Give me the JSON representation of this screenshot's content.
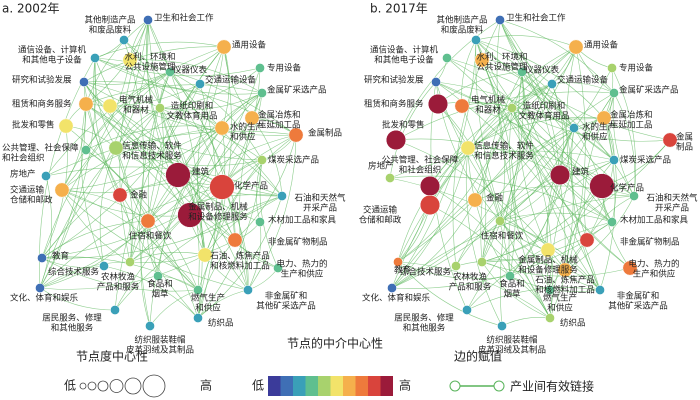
{
  "panels": [
    {
      "title": "a. 2002年",
      "nodes": [
        {
          "label": [
            "其他制造产品",
            "和废品废料"
          ],
          "degree": 1,
          "betweenness": 3
        },
        {
          "label": [
            "卫生和社会工作"
          ],
          "degree": 1,
          "betweenness": 2
        },
        {
          "label": [
            "通信设备、计算机",
            "和其他电子设备"
          ],
          "degree": 1,
          "betweenness": 3
        },
        {
          "label": [
            "水利、环境和",
            "公共设施管理"
          ],
          "degree": 2,
          "betweenness": 6
        },
        {
          "label": [
            "仪器仪表"
          ],
          "degree": 1,
          "betweenness": 4
        },
        {
          "label": [
            "通用设备"
          ],
          "degree": 2,
          "betweenness": 7
        },
        {
          "label": [
            "专用设备"
          ],
          "degree": 1,
          "betweenness": 4
        },
        {
          "label": [
            "交通运输设备"
          ],
          "degree": 1,
          "betweenness": 3
        },
        {
          "label": [
            "研究和试验发展"
          ],
          "degree": 1,
          "betweenness": 2
        },
        {
          "label": [
            "租赁和商务服务"
          ],
          "degree": 2,
          "betweenness": 7
        },
        {
          "label": [
            "电气机械",
            "和器材"
          ],
          "degree": 2,
          "betweenness": 6
        },
        {
          "label": [
            "造纸印刷和",
            "文教体育用品"
          ],
          "degree": 1,
          "betweenness": 5
        },
        {
          "label": [
            "金属矿采选产品"
          ],
          "degree": 1,
          "betweenness": 4
        },
        {
          "label": [
            "批发和零售"
          ],
          "degree": 2,
          "betweenness": 6
        },
        {
          "label": [
            "金属冶炼和",
            "压延加工品"
          ],
          "degree": 2,
          "betweenness": 7
        },
        {
          "label": [
            "水的生产",
            "和供应"
          ],
          "degree": 2,
          "betweenness": 7
        },
        {
          "label": [
            "金属制品"
          ],
          "degree": 2,
          "betweenness": 8
        },
        {
          "label": [
            "公共管理、社会保障",
            "和社会组织"
          ],
          "degree": 1,
          "betweenness": 4
        },
        {
          "label": [
            "信息传输、软件",
            "和信息技术服务"
          ],
          "degree": 2,
          "betweenness": 5
        },
        {
          "label": [
            "煤炭采选产品"
          ],
          "degree": 1,
          "betweenness": 5
        },
        {
          "label": [
            "房地产"
          ],
          "degree": 1,
          "betweenness": 3
        },
        {
          "label": [
            "建筑"
          ],
          "degree": 4,
          "betweenness": 10
        },
        {
          "label": [
            "化学产品"
          ],
          "degree": 4,
          "betweenness": 9
        },
        {
          "label": [
            "交通运输",
            "仓储和邮政"
          ],
          "degree": 2,
          "betweenness": 7
        },
        {
          "label": [
            "金融"
          ],
          "degree": 2,
          "betweenness": 9
        },
        {
          "label": [
            "石油和天然气",
            "开采产品"
          ],
          "degree": 1,
          "betweenness": 3
        },
        {
          "label": [
            "住宿和餐饮"
          ],
          "degree": 2,
          "betweenness": 8
        },
        {
          "label": [
            "金属制品、机械",
            "和设备修理服务"
          ],
          "degree": 4,
          "betweenness": 10
        },
        {
          "label": [
            "木材加工品和家具"
          ],
          "degree": 1,
          "betweenness": 4
        },
        {
          "label": [
            "教育"
          ],
          "degree": 1,
          "betweenness": 2
        },
        {
          "label": [
            "非金属矿物制品"
          ],
          "degree": 2,
          "betweenness": 8
        },
        {
          "label": [
            "综合技术服务"
          ],
          "degree": 1,
          "betweenness": 3
        },
        {
          "label": [
            "石油、炼焦产品",
            "和核燃料加工品"
          ],
          "degree": 2,
          "betweenness": 6
        },
        {
          "label": [
            "农林牧渔",
            "产品和服务"
          ],
          "degree": 1,
          "betweenness": 5
        },
        {
          "label": [
            "电力、热力的",
            "生产和供应"
          ],
          "degree": 1,
          "betweenness": 4
        },
        {
          "label": [
            "食品和",
            "烟草"
          ],
          "degree": 1,
          "betweenness": 4
        },
        {
          "label": [
            "文化、体育和娱乐"
          ],
          "degree": 1,
          "betweenness": 2
        },
        {
          "label": [
            "燃气生产",
            "和供应"
          ],
          "degree": 1,
          "betweenness": 4
        },
        {
          "label": [
            "居民服务、修理",
            "和其他服务"
          ],
          "degree": 1,
          "betweenness": 3
        },
        {
          "label": [
            "非金属矿和",
            "其他矿采选产品"
          ],
          "degree": 1,
          "betweenness": 3
        },
        {
          "label": [
            "纺织品"
          ],
          "degree": 1,
          "betweenness": 3
        },
        {
          "label": [
            "纺织服装鞋帽",
            "皮革羽绒及其制品"
          ],
          "degree": 1,
          "betweenness": 3
        }
      ]
    },
    {
      "title": "b. 2017年",
      "nodes": [
        {
          "label": [
            "其他制造产品",
            "和废品废料"
          ],
          "degree": 1,
          "betweenness": 3
        },
        {
          "label": [
            "卫生和社会工作"
          ],
          "degree": 1,
          "betweenness": 2
        },
        {
          "label": [
            "通信设备、计算机",
            "和其他电子设备"
          ],
          "degree": 1,
          "betweenness": 4
        },
        {
          "label": [
            "水利、环境和",
            "公共设施管理"
          ],
          "degree": 2,
          "betweenness": 7
        },
        {
          "label": [
            "仪器仪表"
          ],
          "degree": 1,
          "betweenness": 4
        },
        {
          "label": [
            "通用设备"
          ],
          "degree": 2,
          "betweenness": 7
        },
        {
          "label": [
            "专用设备"
          ],
          "degree": 1,
          "betweenness": 5
        },
        {
          "label": [
            "交通运输设备"
          ],
          "degree": 1,
          "betweenness": 3
        },
        {
          "label": [
            "研究和试验发展"
          ],
          "degree": 1,
          "betweenness": 2
        },
        {
          "label": [
            "租赁和商务服务"
          ],
          "degree": 3,
          "betweenness": 10
        },
        {
          "label": [
            "电气机械",
            "和器材"
          ],
          "degree": 2,
          "betweenness": 8
        },
        {
          "label": [
            "造纸印刷和",
            "文教体育用品"
          ],
          "degree": 1,
          "betweenness": 5
        },
        {
          "label": [
            "金属矿采选产品"
          ],
          "degree": 1,
          "betweenness": 4
        },
        {
          "label": [
            "批发和零售"
          ],
          "degree": 3,
          "betweenness": 10
        },
        {
          "label": [
            "金属冶炼和",
            "压延加工品"
          ],
          "degree": 2,
          "betweenness": 7
        },
        {
          "label": [
            "水的生产",
            "和供应"
          ],
          "degree": 1,
          "betweenness": 3
        },
        {
          "label": [
            "金属",
            "制品"
          ],
          "degree": 2,
          "betweenness": 9
        },
        {
          "label": [
            "公共管理、社会保障",
            "和社会组织"
          ],
          "degree": 3,
          "betweenness": 10
        },
        {
          "label": [
            "信息传输、软件",
            "和信息技术服务"
          ],
          "degree": 2,
          "betweenness": 6
        },
        {
          "label": [
            "煤炭采选产品"
          ],
          "degree": 1,
          "betweenness": 3
        },
        {
          "label": [
            "房地产"
          ],
          "degree": 1,
          "betweenness": 5
        },
        {
          "label": [
            "建筑"
          ],
          "degree": 3,
          "betweenness": 10
        },
        {
          "label": [
            "化学产品"
          ],
          "degree": 4,
          "betweenness": 10
        },
        {
          "label": [
            "交通运输",
            "仓储和邮政"
          ],
          "degree": 3,
          "betweenness": 9
        },
        {
          "label": [
            "金融"
          ],
          "degree": 2,
          "betweenness": 7
        },
        {
          "label": [
            "石油和天然气",
            "开采产品"
          ],
          "degree": 1,
          "betweenness": 4
        },
        {
          "label": [
            "住宿和餐饮"
          ],
          "degree": 1,
          "betweenness": 5
        },
        {
          "label": [
            "金属制品、机械",
            "和设备修理服务"
          ],
          "degree": 2,
          "betweenness": 6
        },
        {
          "label": [
            "木材加工品和家具"
          ],
          "degree": 1,
          "betweenness": 4
        },
        {
          "label": [
            "教育"
          ],
          "degree": 1,
          "betweenness": 8
        },
        {
          "label": [
            "非金属矿物制品"
          ],
          "degree": 2,
          "betweenness": 9
        },
        {
          "label": [
            "综合技术服务"
          ],
          "degree": 1,
          "betweenness": 5
        },
        {
          "label": [
            "石油、炼焦产品",
            "和核燃料加工品"
          ],
          "degree": 2,
          "betweenness": 7
        },
        {
          "label": [
            "农林牧渔",
            "产品和服务"
          ],
          "degree": 1,
          "betweenness": 5
        },
        {
          "label": [
            "电力、热力的",
            "生产和供应"
          ],
          "degree": 2,
          "betweenness": 8
        },
        {
          "label": [
            "食品和",
            "烟草"
          ],
          "degree": 1,
          "betweenness": 4
        },
        {
          "label": [
            "文化、体育和娱乐"
          ],
          "degree": 1,
          "betweenness": 2
        },
        {
          "label": [
            "燃气生产",
            "和供应"
          ],
          "degree": 1,
          "betweenness": 4
        },
        {
          "label": [
            "居民服务、修理",
            "和其他服务"
          ],
          "degree": 1,
          "betweenness": 3
        },
        {
          "label": [
            "非金属矿和",
            "其他矿采选产品"
          ],
          "degree": 1,
          "betweenness": 3
        },
        {
          "label": [
            "纺织品"
          ],
          "degree": 1,
          "betweenness": 5
        },
        {
          "label": [
            "纺织服装鞋帽",
            "皮革羽绒及其制品"
          ],
          "degree": 1,
          "betweenness": 3
        }
      ]
    }
  ],
  "legend": {
    "degree_title": "节点度中心性",
    "degree_low": "低",
    "degree_high": "高",
    "betweenness_title": "节点的中介中心性",
    "betweenness_low": "低",
    "betweenness_high": "高",
    "edge_title": "边的赋值",
    "edge_label": "产业间有效链接"
  }
}
